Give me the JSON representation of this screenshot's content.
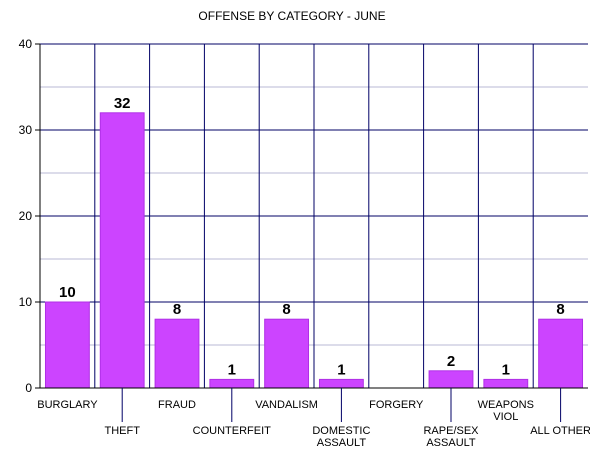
{
  "chart_data": {
    "type": "bar",
    "title": "OFFENSE BY CATEGORY - JUNE",
    "xlabel": "",
    "ylabel": "",
    "categories": [
      "BURGLARY",
      "THEFT",
      "FRAUD",
      "COUNTERFEIT",
      "VANDALISM",
      "DOMESTIC ASSAULT",
      "FORGERY",
      "RAPE/SEX ASSAULT",
      "WEAPONS VIOL",
      "ALL OTHER"
    ],
    "category_lines": [
      [
        "BURGLARY"
      ],
      [
        "THEFT"
      ],
      [
        "FRAUD"
      ],
      [
        "COUNTERFEIT"
      ],
      [
        "VANDALISM"
      ],
      [
        "DOMESTIC",
        "ASSAULT"
      ],
      [
        "FORGERY"
      ],
      [
        "RAPE/SEX",
        "ASSAULT"
      ],
      [
        "WEAPONS",
        "VIOL"
      ],
      [
        "ALL OTHER"
      ]
    ],
    "values": [
      10,
      32,
      8,
      1,
      8,
      1,
      null,
      2,
      1,
      8
    ],
    "data_labels": [
      "10",
      "32",
      "8",
      "1",
      "8",
      "1",
      "",
      "2",
      "1",
      "8"
    ],
    "ylim": [
      0,
      40
    ],
    "yticks": [
      0,
      10,
      20,
      30,
      40
    ],
    "grid": true,
    "legend": "none",
    "colors": {
      "bar": "#cc44ff",
      "bar_edge": "#b030e6",
      "grid": "#000066",
      "axis": "#000000"
    }
  }
}
